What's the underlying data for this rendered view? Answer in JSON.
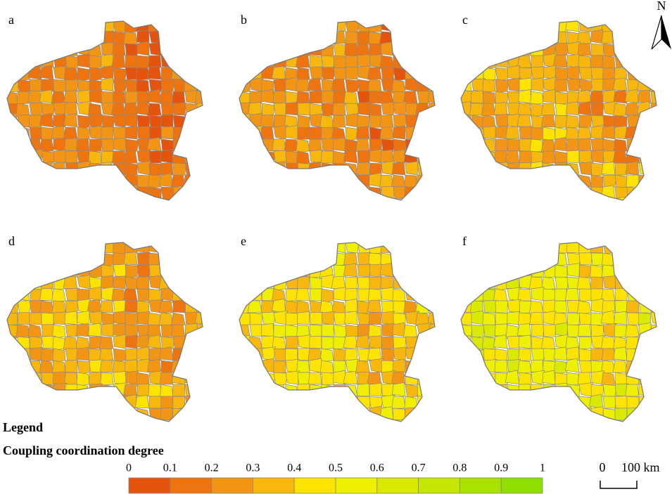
{
  "panels": [
    "a",
    "b",
    "c",
    "d",
    "e",
    "f"
  ],
  "north": "N",
  "legend": {
    "title": "Legend",
    "subtitle": "Coupling coordination degree",
    "ticks": [
      0,
      0.1,
      0.2,
      0.3,
      0.4,
      0.5,
      0.6,
      0.7,
      0.8,
      0.9,
      1
    ],
    "colors": [
      "#e4540c",
      "#ee7410",
      "#f39514",
      "#f7b70c",
      "#fde400",
      "#eef000",
      "#d9ea00",
      "#c4e600",
      "#aae200",
      "#8fe000"
    ]
  },
  "scale_bar": {
    "start": "0",
    "end": "100 km"
  }
}
